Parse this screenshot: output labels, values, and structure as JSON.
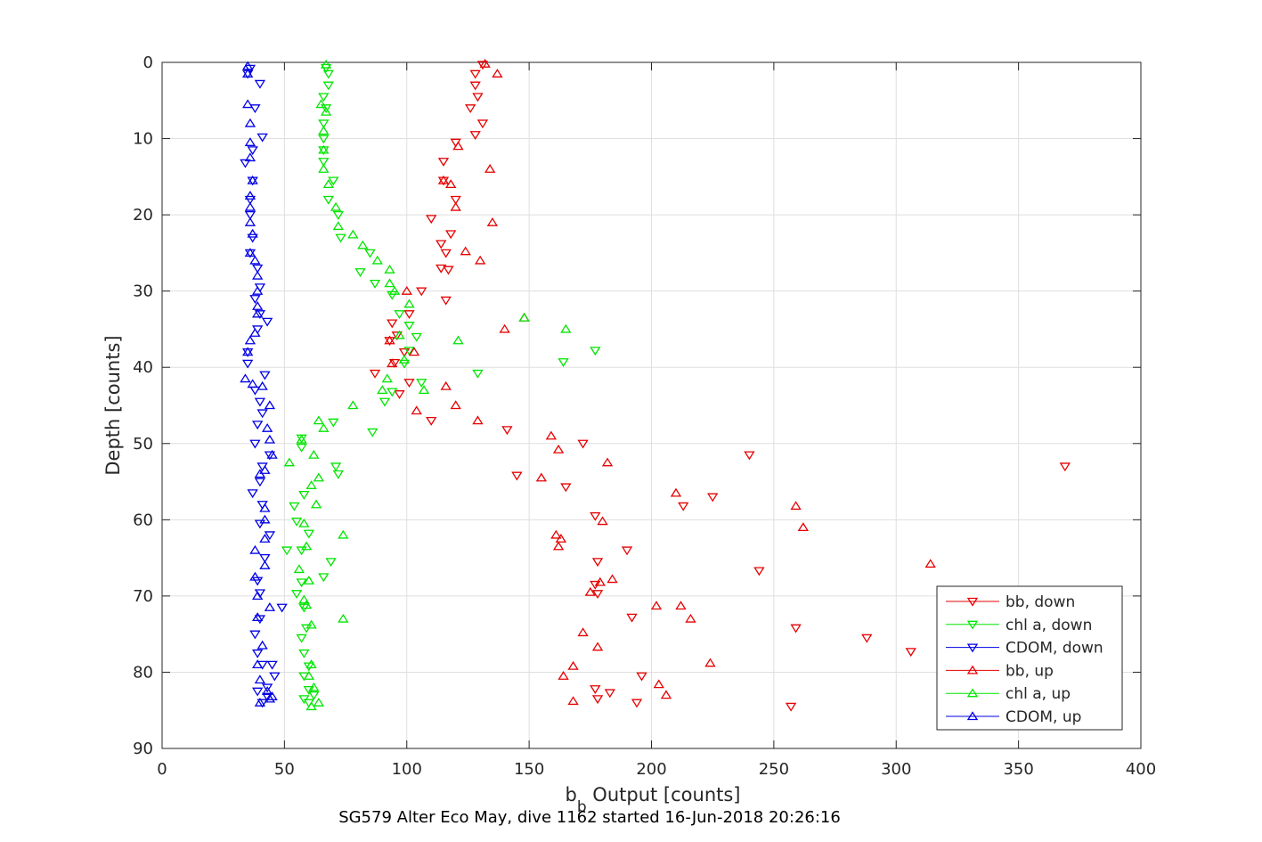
{
  "chart_data": {
    "type": "scatter",
    "xlabel_base": "b",
    "xlabel_sub": "b",
    "xlabel_rest": " Output [counts]",
    "ylabel": "Depth [counts]",
    "caption": "SG579 Alter Eco May, dive 1162 started 16-Jun-2018 20:26:16",
    "xlim": [
      0,
      400
    ],
    "ylim": [
      0,
      90
    ],
    "y_reversed": true,
    "grid": true,
    "xticks": [
      "0",
      "50",
      "100",
      "150",
      "200",
      "250",
      "300",
      "350",
      "400"
    ],
    "yticks": [
      "0",
      "10",
      "20",
      "30",
      "40",
      "50",
      "60",
      "70",
      "80",
      "90"
    ],
    "legend_position": "bottom-right",
    "series": [
      {
        "name": "bb, down",
        "color": "#e60000",
        "marker": "triangle-down",
        "points": [
          [
            131,
            0.3
          ],
          [
            128,
            1.5
          ],
          [
            128,
            3
          ],
          [
            129,
            4.5
          ],
          [
            126,
            6
          ],
          [
            131,
            8
          ],
          [
            128,
            9.5
          ],
          [
            120,
            10.5
          ],
          [
            115,
            13
          ],
          [
            115,
            15.5
          ],
          [
            120,
            18
          ],
          [
            110,
            20.5
          ],
          [
            118,
            22.5
          ],
          [
            114,
            23.8
          ],
          [
            116,
            25
          ],
          [
            114,
            27
          ],
          [
            117,
            27.2
          ],
          [
            106,
            30
          ],
          [
            116,
            31.2
          ],
          [
            101,
            33
          ],
          [
            94,
            34.2
          ],
          [
            96,
            35.8
          ],
          [
            93,
            36.5
          ],
          [
            99,
            38
          ],
          [
            95,
            39.4
          ],
          [
            87,
            40.8
          ],
          [
            101,
            42
          ],
          [
            97,
            43.5
          ],
          [
            110,
            47
          ],
          [
            141,
            48.2
          ],
          [
            172,
            50
          ],
          [
            240,
            51.5
          ],
          [
            369,
            53
          ],
          [
            145,
            54.2
          ],
          [
            165,
            55.7
          ],
          [
            225,
            57
          ],
          [
            213,
            58.2
          ],
          [
            177,
            59.5
          ],
          [
            190,
            64
          ],
          [
            178,
            65.5
          ],
          [
            244,
            66.7
          ],
          [
            177,
            68.5
          ],
          [
            178,
            69.7
          ],
          [
            192,
            72.8
          ],
          [
            259,
            74.2
          ],
          [
            288,
            75.5
          ],
          [
            306,
            77.3
          ],
          [
            196,
            80.5
          ],
          [
            177,
            82.2
          ],
          [
            183,
            82.7
          ],
          [
            178,
            83.5
          ],
          [
            194,
            84
          ],
          [
            257,
            84.5
          ]
        ]
      },
      {
        "name": "chl a, down",
        "color": "#00e600",
        "marker": "triangle-down",
        "points": [
          [
            67,
            0.7
          ],
          [
            68,
            1.5
          ],
          [
            68,
            3
          ],
          [
            66,
            4.5
          ],
          [
            67,
            6
          ],
          [
            66,
            8
          ],
          [
            66,
            10
          ],
          [
            66,
            11.5
          ],
          [
            66,
            13
          ],
          [
            70,
            15.5
          ],
          [
            68,
            18
          ],
          [
            72,
            20
          ],
          [
            73,
            23
          ],
          [
            85,
            25
          ],
          [
            81,
            27.5
          ],
          [
            87,
            29
          ],
          [
            94,
            30.5
          ],
          [
            97,
            33
          ],
          [
            101,
            34.5
          ],
          [
            104,
            36
          ],
          [
            101,
            37.8
          ],
          [
            99,
            39.5
          ],
          [
            106,
            42
          ],
          [
            129,
            40.8
          ],
          [
            164,
            39.3
          ],
          [
            177,
            37.8
          ],
          [
            94,
            43.2
          ],
          [
            91,
            44.5
          ],
          [
            86,
            48.5
          ],
          [
            70,
            47.2
          ],
          [
            57,
            49.3
          ],
          [
            57,
            50.5
          ],
          [
            71,
            53
          ],
          [
            72,
            54
          ],
          [
            58,
            56.7
          ],
          [
            54,
            58.2
          ],
          [
            55,
            60.2
          ],
          [
            60,
            61.8
          ],
          [
            51,
            64
          ],
          [
            57,
            64
          ],
          [
            66,
            67.5
          ],
          [
            69,
            65.5
          ],
          [
            57,
            68.2
          ],
          [
            55,
            69.7
          ],
          [
            58,
            71.5
          ],
          [
            59,
            74.2
          ],
          [
            57,
            75.5
          ],
          [
            58,
            77.5
          ],
          [
            60,
            79.2
          ],
          [
            58,
            80.5
          ],
          [
            60,
            82.3
          ],
          [
            62,
            83
          ],
          [
            58,
            83.5
          ],
          [
            60,
            84
          ]
        ]
      },
      {
        "name": "CDOM, down",
        "color": "#0000e6",
        "marker": "triangle-down",
        "points": [
          [
            36,
            0.8
          ],
          [
            35,
            1.5
          ],
          [
            40,
            2.8
          ],
          [
            38,
            6
          ],
          [
            41,
            9.8
          ],
          [
            37,
            11.5
          ],
          [
            34,
            13.2
          ],
          [
            37,
            15.5
          ],
          [
            36,
            18
          ],
          [
            36,
            20
          ],
          [
            37,
            23
          ],
          [
            36,
            25
          ],
          [
            39,
            27
          ],
          [
            40,
            29.5
          ],
          [
            38,
            31
          ],
          [
            40,
            33
          ],
          [
            43,
            34
          ],
          [
            39,
            35
          ],
          [
            35,
            38
          ],
          [
            35,
            39.5
          ],
          [
            42,
            41
          ],
          [
            38,
            43
          ],
          [
            40,
            44.5
          ],
          [
            41,
            46
          ],
          [
            39,
            47.5
          ],
          [
            38,
            50
          ],
          [
            44,
            51.5
          ],
          [
            41,
            53
          ],
          [
            40,
            55
          ],
          [
            37,
            56.5
          ],
          [
            41,
            58
          ],
          [
            44,
            62
          ],
          [
            40,
            60.5
          ],
          [
            42,
            65
          ],
          [
            39,
            68
          ],
          [
            40,
            69.6
          ],
          [
            49,
            71.5
          ],
          [
            40,
            73
          ],
          [
            38,
            75
          ],
          [
            39,
            77.5
          ],
          [
            41,
            79
          ],
          [
            45,
            79
          ],
          [
            46,
            80.5
          ],
          [
            43,
            82
          ],
          [
            39,
            82.5
          ],
          [
            43,
            83.2
          ],
          [
            41,
            84
          ]
        ]
      },
      {
        "name": "bb, up",
        "color": "#e60000",
        "marker": "triangle-up",
        "points": [
          [
            132,
            0.2
          ],
          [
            137,
            1.5
          ],
          [
            134,
            14
          ],
          [
            130,
            26
          ],
          [
            135,
            21
          ],
          [
            120,
            19
          ],
          [
            118,
            16
          ],
          [
            115,
            15.5
          ],
          [
            121,
            11
          ],
          [
            124,
            24.8
          ],
          [
            100,
            30
          ],
          [
            93,
            36.5
          ],
          [
            94,
            39.5
          ],
          [
            103,
            38
          ],
          [
            116,
            42.5
          ],
          [
            120,
            45
          ],
          [
            104,
            45.7
          ],
          [
            129,
            47
          ],
          [
            140,
            35
          ],
          [
            148,
            33.5
          ],
          [
            159,
            49
          ],
          [
            162,
            50.8
          ],
          [
            155,
            54.5
          ],
          [
            182,
            52.5
          ],
          [
            210,
            56.5
          ],
          [
            259,
            58.2
          ],
          [
            262,
            61
          ],
          [
            180,
            60.2
          ],
          [
            161,
            62
          ],
          [
            162,
            63.5
          ],
          [
            163,
            62.5
          ],
          [
            184,
            67.8
          ],
          [
            179,
            68.2
          ],
          [
            175,
            69.5
          ],
          [
            202,
            71.3
          ],
          [
            212,
            71.3
          ],
          [
            216,
            73
          ],
          [
            172,
            74.8
          ],
          [
            178,
            76.7
          ],
          [
            314,
            65.8
          ],
          [
            224,
            78.8
          ],
          [
            168,
            79.2
          ],
          [
            164,
            80.5
          ],
          [
            203,
            81.6
          ],
          [
            206,
            83
          ],
          [
            168,
            83.8
          ]
        ]
      },
      {
        "name": "chl a, up",
        "color": "#00e600",
        "marker": "triangle-up",
        "points": [
          [
            67,
            0.3
          ],
          [
            65,
            5.5
          ],
          [
            67,
            6.5
          ],
          [
            66,
            9
          ],
          [
            66,
            11.5
          ],
          [
            66,
            14
          ],
          [
            68,
            16
          ],
          [
            71,
            19
          ],
          [
            72,
            21.5
          ],
          [
            78,
            22.6
          ],
          [
            82,
            24
          ],
          [
            88,
            26
          ],
          [
            93,
            27.2
          ],
          [
            93,
            29
          ],
          [
            95,
            30
          ],
          [
            101,
            31.7
          ],
          [
            97,
            35.8
          ],
          [
            99,
            39
          ],
          [
            92,
            41.5
          ],
          [
            90,
            43
          ],
          [
            78,
            45
          ],
          [
            107,
            43
          ],
          [
            121,
            36.5
          ],
          [
            148,
            33.5
          ],
          [
            165,
            35
          ],
          [
            64,
            47
          ],
          [
            66,
            48
          ],
          [
            57,
            49.5
          ],
          [
            62,
            51.5
          ],
          [
            52,
            52.5
          ],
          [
            61,
            55.5
          ],
          [
            64,
            54.5
          ],
          [
            63,
            58
          ],
          [
            58,
            60.5
          ],
          [
            74,
            62
          ],
          [
            59,
            63.5
          ],
          [
            56,
            66.5
          ],
          [
            60,
            68
          ],
          [
            58,
            70.5
          ],
          [
            59,
            71.2
          ],
          [
            74,
            73
          ],
          [
            61,
            73.8
          ],
          [
            61,
            79
          ],
          [
            60,
            80.5
          ],
          [
            62,
            82
          ],
          [
            64,
            84
          ],
          [
            61,
            84.5
          ]
        ]
      },
      {
        "name": "CDOM, up",
        "color": "#0000e6",
        "marker": "triangle-up",
        "points": [
          [
            35,
            0.5
          ],
          [
            35,
            1.5
          ],
          [
            35,
            5.5
          ],
          [
            36,
            8
          ],
          [
            36,
            10.5
          ],
          [
            36,
            12.5
          ],
          [
            37,
            15.5
          ],
          [
            36,
            17.5
          ],
          [
            36,
            19
          ],
          [
            36,
            21
          ],
          [
            37,
            22.5
          ],
          [
            36,
            25
          ],
          [
            38,
            26
          ],
          [
            39,
            28
          ],
          [
            39,
            30
          ],
          [
            39,
            32
          ],
          [
            39,
            33
          ],
          [
            38,
            35.5
          ],
          [
            36,
            36.5
          ],
          [
            35,
            38
          ],
          [
            34,
            41.5
          ],
          [
            37,
            42.2
          ],
          [
            41,
            42.5
          ],
          [
            44,
            45
          ],
          [
            43,
            48
          ],
          [
            44,
            49.5
          ],
          [
            45,
            51.5
          ],
          [
            42,
            53.5
          ],
          [
            40,
            54
          ],
          [
            42,
            58.5
          ],
          [
            42,
            60
          ],
          [
            42,
            62.5
          ],
          [
            38,
            64
          ],
          [
            42,
            66
          ],
          [
            38,
            67.5
          ],
          [
            39,
            70
          ],
          [
            44,
            71.5
          ],
          [
            39,
            72.8
          ],
          [
            41,
            76.5
          ],
          [
            39,
            79
          ],
          [
            40,
            81
          ],
          [
            43,
            82.5
          ],
          [
            45,
            83.2
          ],
          [
            40,
            84
          ],
          [
            44,
            83.5
          ]
        ]
      }
    ]
  }
}
